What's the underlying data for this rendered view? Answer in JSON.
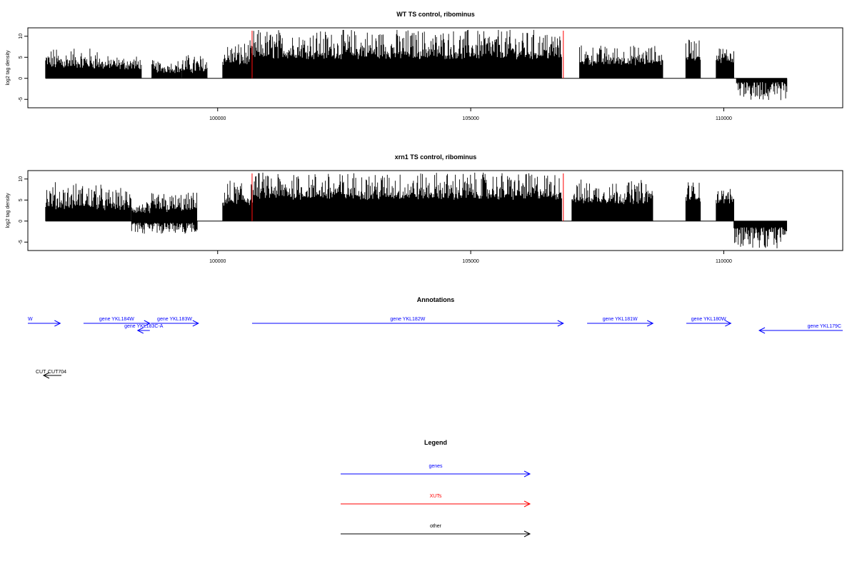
{
  "chart_data": [
    {
      "type": "bar",
      "title": "WT TS control, ribominus",
      "xlabel": "",
      "ylabel": "log2 tag density",
      "xlim": [
        96250,
        112350
      ],
      "ylim": [
        -7,
        12
      ],
      "x_ticks": [
        100000,
        105000,
        110000
      ],
      "y_ticks": [
        10,
        5,
        0,
        -5
      ],
      "marker_lines": [
        100680,
        106830
      ],
      "marker_color": "#ff0000",
      "plus_strand_blocks": [
        {
          "start": 96600,
          "end": 97700,
          "base": 2.2,
          "peak": 6.5
        },
        {
          "start": 97700,
          "end": 98500,
          "base": 2.0,
          "peak": 4.5
        },
        {
          "start": 98700,
          "end": 99300,
          "base": 1.2,
          "peak": 3.5
        },
        {
          "start": 99300,
          "end": 99800,
          "base": 1.2,
          "peak": 5.0
        },
        {
          "start": 100100,
          "end": 100700,
          "base": 3.0,
          "peak": 8.0
        },
        {
          "start": 100700,
          "end": 106800,
          "base": 4.5,
          "peak": 11.0
        },
        {
          "start": 107150,
          "end": 108800,
          "base": 3.0,
          "peak": 7.0
        },
        {
          "start": 109250,
          "end": 109550,
          "base": 4.0,
          "peak": 9.0
        },
        {
          "start": 109850,
          "end": 110200,
          "base": 3.5,
          "peak": 7.0
        }
      ],
      "minus_strand_blocks": [
        {
          "start": 110250,
          "end": 111250,
          "base": 1.8,
          "peak": 5.2
        }
      ]
    },
    {
      "type": "bar",
      "title": "xrn1 TS control, ribominus",
      "xlabel": "",
      "ylabel": "log2 tag density",
      "xlim": [
        96250,
        112350
      ],
      "ylim": [
        -7,
        12
      ],
      "x_ticks": [
        100000,
        105000,
        110000
      ],
      "y_ticks": [
        10,
        5,
        0,
        -5
      ],
      "marker_lines": [
        100680,
        106830
      ],
      "marker_color": "#ff0000",
      "plus_strand_blocks": [
        {
          "start": 96600,
          "end": 97700,
          "base": 2.8,
          "peak": 8.5
        },
        {
          "start": 97700,
          "end": 98300,
          "base": 2.5,
          "peak": 7.0
        },
        {
          "start": 98300,
          "end": 98700,
          "base": 1.5,
          "peak": 4.0
        },
        {
          "start": 98700,
          "end": 99600,
          "base": 2.0,
          "peak": 6.0
        },
        {
          "start": 100100,
          "end": 100700,
          "base": 3.5,
          "peak": 9.0
        },
        {
          "start": 100700,
          "end": 106800,
          "base": 5.0,
          "peak": 11.0
        },
        {
          "start": 107000,
          "end": 108600,
          "base": 4.0,
          "peak": 9.0
        },
        {
          "start": 109250,
          "end": 109550,
          "base": 4.5,
          "peak": 9.0
        },
        {
          "start": 109850,
          "end": 110200,
          "base": 4.0,
          "peak": 7.0
        }
      ],
      "minus_strand_blocks": [
        {
          "start": 98300,
          "end": 99600,
          "base": 0.8,
          "peak": 3.0
        },
        {
          "start": 110200,
          "end": 111250,
          "base": 3.0,
          "peak": 6.5
        }
      ]
    }
  ],
  "annotations": {
    "title": "Annotations",
    "genes": [
      {
        "label": "W",
        "start": 96250,
        "end": 96890,
        "strand": "+",
        "row": 0
      },
      {
        "label": "gene YKL184W",
        "start": 97350,
        "end": 98660,
        "strand": "+",
        "row": 0
      },
      {
        "label": "gene YKL183C-A",
        "start": 98420,
        "end": 98660,
        "strand": "-",
        "row": 1
      },
      {
        "label": "gene YKL183W",
        "start": 98680,
        "end": 99620,
        "strand": "+",
        "row": 0
      },
      {
        "label": "gene YKL182W",
        "start": 100680,
        "end": 106830,
        "strand": "+",
        "row": 0
      },
      {
        "label": "gene YKL181W",
        "start": 107300,
        "end": 108600,
        "strand": "+",
        "row": 0
      },
      {
        "label": "gene YKL180W",
        "start": 109260,
        "end": 110140,
        "strand": "+",
        "row": 0
      },
      {
        "label": "gene YKL179C",
        "start": 110700,
        "end": 112350,
        "strand": "-",
        "row": 1
      }
    ],
    "other": [
      {
        "label": "CUT",
        "start": 96440,
        "end": 96780,
        "strand": "-"
      },
      {
        "label": "CUT704",
        "start": 96440,
        "end": 96780,
        "strand": "-"
      }
    ]
  },
  "legend": {
    "title": "Legend",
    "items": [
      {
        "label": "genes",
        "color": "#0000ff"
      },
      {
        "label": "XUTs",
        "color": "#ff0000"
      },
      {
        "label": "other",
        "color": "#000000"
      }
    ]
  },
  "colors": {
    "gene": "#0000ff",
    "xut": "#ff0000",
    "other": "#000000",
    "bars": "#000000"
  }
}
